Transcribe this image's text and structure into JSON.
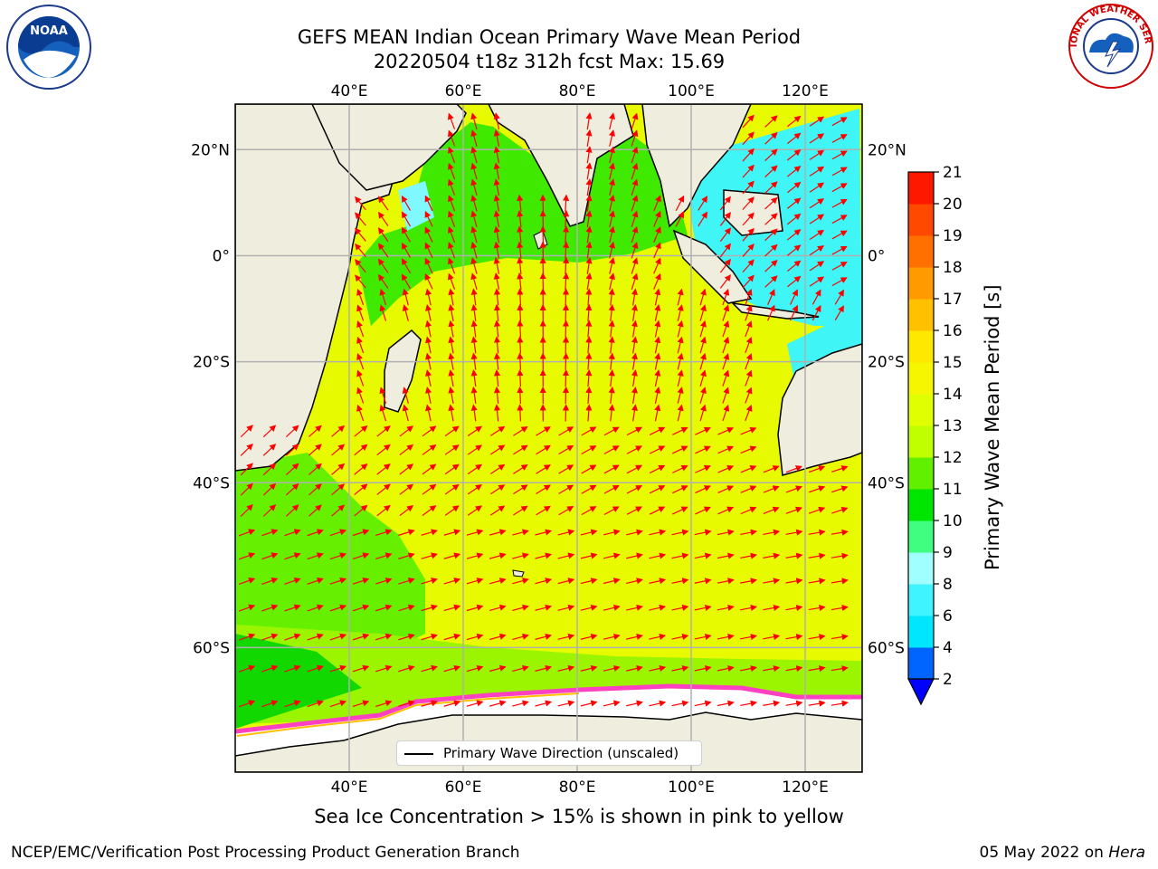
{
  "title_line1": "GEFS MEAN Indian Ocean Primary Wave Mean Period",
  "title_line2": "20220504 t18z 312h fcst   Max: 15.69",
  "logos": {
    "left": "NOAA",
    "right": "NATIONAL WEATHER SERVICE",
    "left_icon": "noaa-logo-icon",
    "right_icon": "nws-logo-icon"
  },
  "axes": {
    "lon_ticks": [
      "40°E",
      "60°E",
      "80°E",
      "100°E",
      "120°E"
    ],
    "lat_ticks": [
      "20°N",
      "0°",
      "20°S",
      "40°S",
      "60°S"
    ],
    "lon_range": [
      20,
      130
    ],
    "lat_range": [
      -70,
      28
    ],
    "grid": true
  },
  "colorbar": {
    "label": "Primary Wave Mean Period [s]",
    "tick_labels": [
      "2",
      "4",
      "6",
      "8",
      "9",
      "10",
      "11",
      "12",
      "13",
      "14",
      "15",
      "16",
      "17",
      "18",
      "19",
      "20",
      "21"
    ],
    "colors": [
      "#0064ff",
      "#00e6ff",
      "#40f4ff",
      "#a0ffff",
      "#40ff80",
      "#00e600",
      "#60f000",
      "#c0ff00",
      "#e0ff00",
      "#f6f600",
      "#ffe800",
      "#ffc000",
      "#ff9a00",
      "#ff7000",
      "#ff4800",
      "#ff1800"
    ],
    "under_color": "#0000ff",
    "extend": "min"
  },
  "legend_label": "Primary Wave Direction (unscaled)",
  "caption": "Sea Ice Concentration > 15% is shown in pink to yellow",
  "footer_left": "NCEP/EMC/Verification Post Processing Product Generation Branch",
  "footer_date": "05 May 2022 on",
  "footer_host": "Hera",
  "map_colors": {
    "land": "#efeddd",
    "ice": "#ffffff",
    "arrow": "#ff0000",
    "gridline": "#b0b0b0"
  }
}
